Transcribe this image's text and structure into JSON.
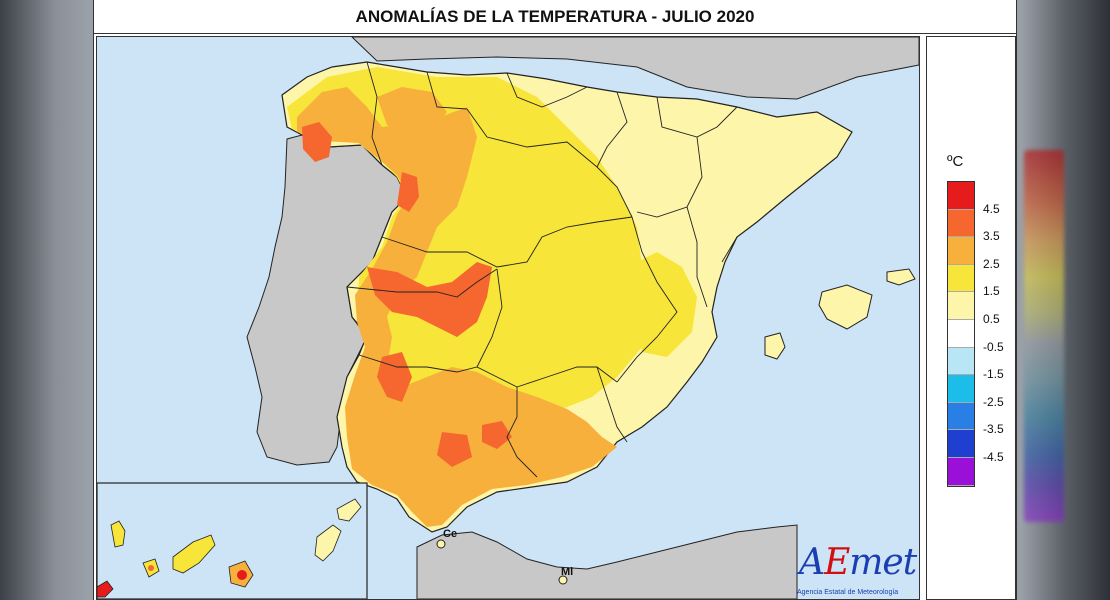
{
  "title": "ANOMALÍAS DE LA TEMPERATURA - JULIO 2020",
  "legend": {
    "unit": "ºC",
    "classes": [
      {
        "label": "4.5",
        "color": "#e61c1c"
      },
      {
        "label": "3.5",
        "color": "#f5672f"
      },
      {
        "label": "2.5",
        "color": "#f7b03b"
      },
      {
        "label": "1.5",
        "color": "#f7e53a"
      },
      {
        "label": "0.5",
        "color": "#fdf5a9"
      },
      {
        "label": "-0.5",
        "color": "#ffffff"
      },
      {
        "label": "-1.5",
        "color": "#b9e6f5"
      },
      {
        "label": "-2.5",
        "color": "#1cbde8"
      },
      {
        "label": "-3.5",
        "color": "#2a7fe6"
      },
      {
        "label": "-4.5",
        "color": "#1f3fd0"
      },
      {
        "label": "",
        "color": "#9a10d8"
      }
    ]
  },
  "places": {
    "ceuta": "Ce",
    "melilla": "Ml"
  },
  "logo": {
    "text_a": "A",
    "text_e": "E",
    "text_rest": "met",
    "subtitle": "Agencia Estatal de Meteorología"
  },
  "colors": {
    "sea": "#cde3f6",
    "land_outside": "#c8c8c8",
    "border": "#222222"
  }
}
